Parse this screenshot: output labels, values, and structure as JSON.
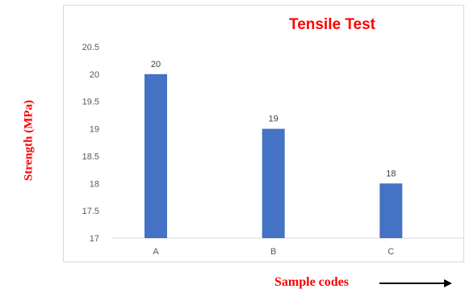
{
  "chart_data": {
    "type": "bar",
    "title": "Tensile Test",
    "xlabel": "Sample codes",
    "ylabel": "Strength (MPa)",
    "categories": [
      "A",
      "B",
      "C"
    ],
    "values": [
      20,
      19,
      18
    ],
    "data_labels": [
      "20",
      "19",
      "18"
    ],
    "yticks": [
      "17",
      "17.5",
      "18",
      "18.5",
      "19",
      "19.5",
      "20",
      "20.5"
    ],
    "ylim": [
      17,
      20.5
    ],
    "grid": false,
    "legend": "none",
    "bar_color": "#4472c4",
    "label_color": "#ff0000"
  }
}
